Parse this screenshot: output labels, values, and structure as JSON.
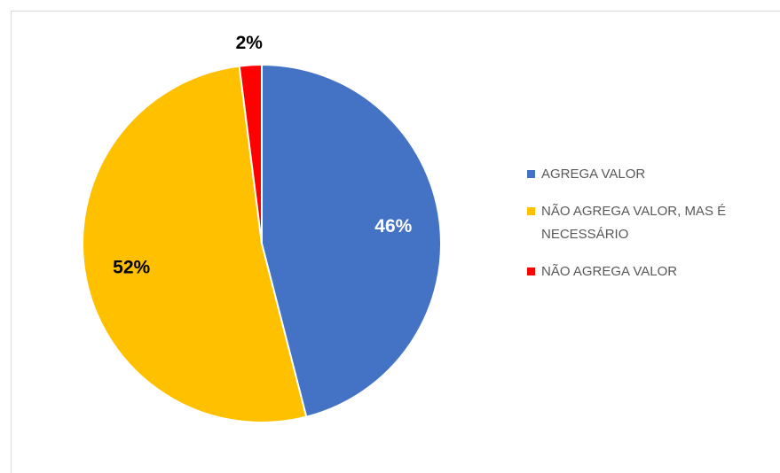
{
  "chart_data": {
    "type": "pie",
    "categories": [
      "AGREGA VALOR",
      "NÃO AGREGA VALOR, MAS É NECESSÁRIO",
      "NÃO AGREGA VALOR"
    ],
    "values": [
      46,
      52,
      2
    ],
    "value_labels": [
      "46%",
      "52%",
      "2%"
    ],
    "colors": [
      "#4472c4",
      "#ffc000",
      "#ff0000"
    ],
    "legend": "right"
  }
}
